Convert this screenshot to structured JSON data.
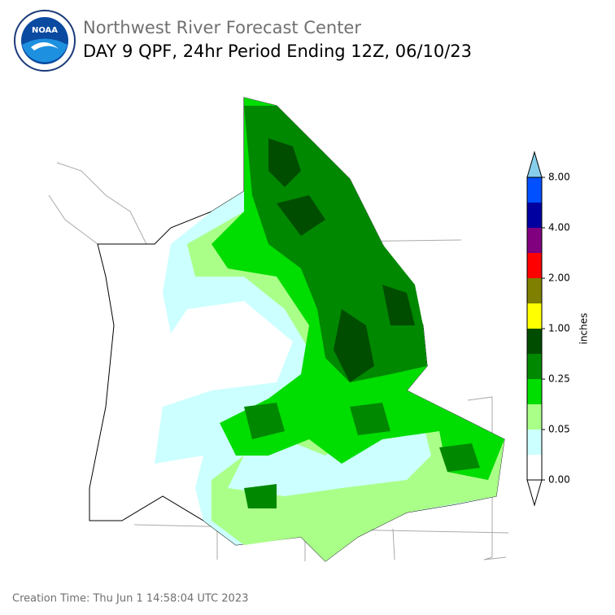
{
  "header": {
    "logo_text": "NOAA",
    "title": "Northwest River Forecast Center",
    "subtitle": "DAY 9 QPF, 24hr Period Ending 12Z, 06/10/23"
  },
  "colorbar": {
    "unit": "inches",
    "colors": [
      "#0050ff",
      "#0000a0",
      "#800080",
      "#ff0000",
      "#808000",
      "#ffff00",
      "#004d00",
      "#008800",
      "#00dd00",
      "#aaff88",
      "#ccffff",
      "#ffffff"
    ],
    "top_color": "#87ceeb",
    "labels": [
      "8.00",
      "4.00",
      "2.00",
      "1.00",
      "0.25",
      "0.05",
      "0.00"
    ]
  },
  "footer": {
    "creation_time": "Creation Time: Thu Jun 1 14:58:04 UTC 2023"
  }
}
